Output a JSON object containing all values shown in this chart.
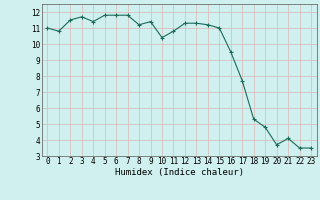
{
  "x": [
    0,
    1,
    2,
    3,
    4,
    5,
    6,
    7,
    8,
    9,
    10,
    11,
    12,
    13,
    14,
    15,
    16,
    17,
    18,
    19,
    20,
    21,
    22,
    23
  ],
  "y": [
    11.0,
    10.8,
    11.5,
    11.7,
    11.4,
    11.8,
    11.8,
    11.8,
    11.2,
    11.4,
    10.4,
    10.8,
    11.3,
    11.3,
    11.2,
    11.0,
    9.5,
    7.7,
    5.3,
    4.8,
    3.7,
    4.1,
    3.5,
    3.5
  ],
  "xlabel": "Humidex (Indice chaleur)",
  "ylim": [
    3,
    12.5
  ],
  "xlim": [
    -0.5,
    23.5
  ],
  "bg_color": "#cff0ee",
  "grid_color": "#d8b8b8",
  "line_color": "#1a6b5a",
  "tick_fontsize": 5.5,
  "xlabel_fontsize": 6.5
}
